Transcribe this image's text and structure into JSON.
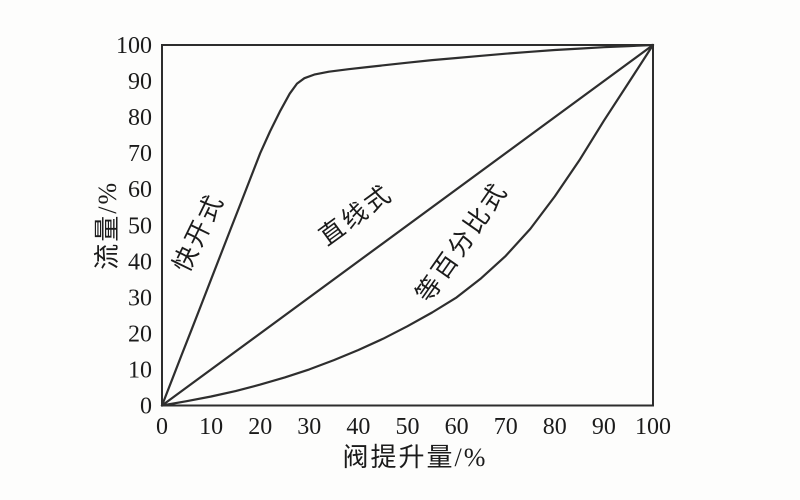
{
  "chart_data": {
    "type": "line",
    "title": "",
    "xlabel": "阀提升量/%",
    "ylabel": "流量/%",
    "xlim": [
      0,
      100
    ],
    "ylim": [
      0,
      100
    ],
    "xticks": [
      0,
      10,
      20,
      30,
      40,
      50,
      60,
      70,
      80,
      90,
      100
    ],
    "yticks": [
      0,
      10,
      20,
      30,
      40,
      50,
      60,
      70,
      80,
      90,
      100
    ],
    "grid": false,
    "legend_position": "labels-along-curves",
    "frame": "full-box",
    "axis_color": "#2d2d2d",
    "line_color": "#2e2e2e",
    "text_color": "#1b1b1b",
    "background_color": "#fdfdfc",
    "series": [
      {
        "name": "quick-opening",
        "label": {
          "text": "快开式",
          "x": 9,
          "y": 47,
          "rotation": -64
        },
        "points": [
          [
            0,
            0
          ],
          [
            2,
            7
          ],
          [
            4,
            14
          ],
          [
            6,
            21
          ],
          [
            8,
            28
          ],
          [
            10,
            35
          ],
          [
            12,
            42
          ],
          [
            14,
            49
          ],
          [
            16,
            56
          ],
          [
            18,
            63
          ],
          [
            20,
            70
          ],
          [
            22,
            76
          ],
          [
            24,
            81.5
          ],
          [
            26,
            86.5
          ],
          [
            27.5,
            89.3
          ],
          [
            29,
            90.8
          ],
          [
            31,
            91.8
          ],
          [
            34,
            92.6
          ],
          [
            38,
            93.3
          ],
          [
            42,
            93.9
          ],
          [
            46,
            94.5
          ],
          [
            50,
            95.1
          ],
          [
            55,
            95.8
          ],
          [
            60,
            96.4
          ],
          [
            65,
            97
          ],
          [
            70,
            97.6
          ],
          [
            75,
            98.1
          ],
          [
            80,
            98.6
          ],
          [
            85,
            99
          ],
          [
            90,
            99.4
          ],
          [
            95,
            99.7
          ],
          [
            100,
            100
          ]
        ]
      },
      {
        "name": "linear",
        "label": {
          "text": "直线式",
          "x": 40.5,
          "y": 51,
          "rotation": -36
        },
        "points": [
          [
            0,
            0
          ],
          [
            100,
            100
          ]
        ]
      },
      {
        "name": "equal-percentage",
        "label": {
          "text": "等百分比式",
          "x": 62.5,
          "y": 44,
          "rotation": -55
        },
        "points": [
          [
            0,
            0
          ],
          [
            5,
            1.2
          ],
          [
            10,
            2.5
          ],
          [
            15,
            4
          ],
          [
            20,
            5.8
          ],
          [
            25,
            7.8
          ],
          [
            30,
            10
          ],
          [
            35,
            12.6
          ],
          [
            40,
            15.4
          ],
          [
            45,
            18.5
          ],
          [
            50,
            22
          ],
          [
            55,
            25.8
          ],
          [
            60,
            30
          ],
          [
            65,
            35.3
          ],
          [
            70,
            41.5
          ],
          [
            75,
            49
          ],
          [
            80,
            58
          ],
          [
            85,
            68
          ],
          [
            90,
            79
          ],
          [
            95,
            89.5
          ],
          [
            100,
            100
          ]
        ]
      }
    ]
  }
}
